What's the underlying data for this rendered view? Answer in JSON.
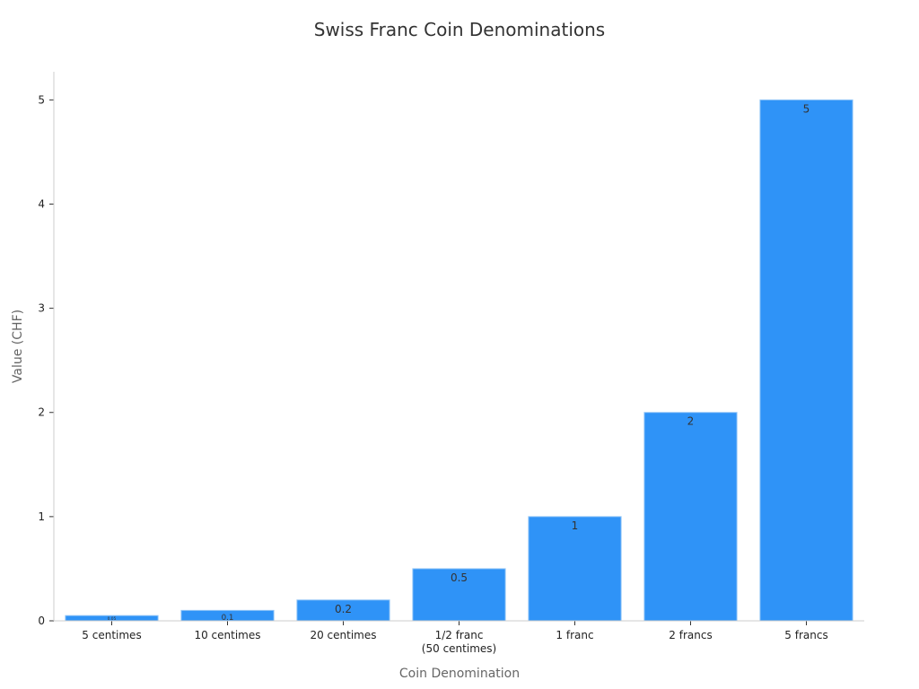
{
  "chart_data": {
    "type": "bar",
    "title": "Swiss Franc Coin Denominations",
    "xlabel": "Coin Denomination",
    "ylabel": "Value (CHF)",
    "categories": [
      "5 centimes",
      "10 centimes",
      "20 centimes",
      "1/2 franc\n(50 centimes)",
      "1 franc",
      "2 francs",
      "5 francs"
    ],
    "values": [
      0.05,
      0.1,
      0.2,
      0.5,
      1,
      2,
      5
    ],
    "data_labels": [
      "0.05",
      "0.1",
      "0.2",
      "0.5",
      "1",
      "2",
      "5"
    ],
    "ylim": [
      0,
      5.27
    ],
    "yticks": [
      0,
      1,
      2,
      3,
      4,
      5
    ],
    "grid": false,
    "legend": "none",
    "colors": {
      "bar": "#2f93f7",
      "bar_edge": "#8fc4f7",
      "axis": "#cccccc",
      "text": "#333333"
    }
  }
}
